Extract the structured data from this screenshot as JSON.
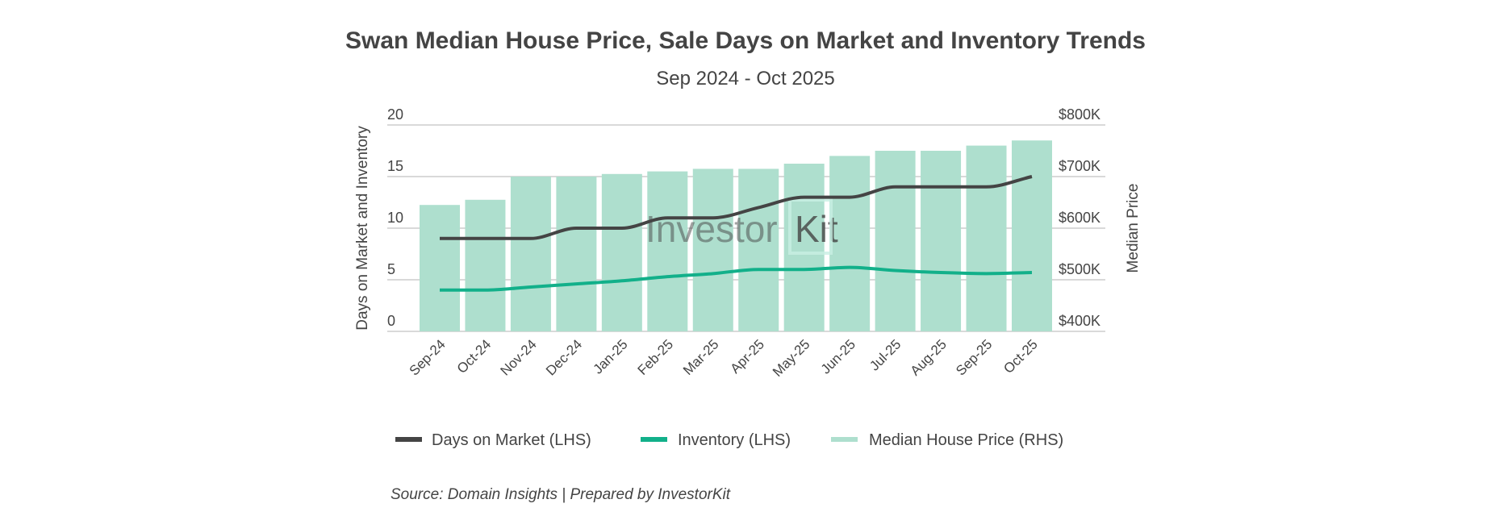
{
  "chart_data": {
    "type": "bar+line",
    "title": "Swan Median House Price, Sale Days on Market and Inventory Trends",
    "subtitle": "Sep 2024 - Oct 2025",
    "categories": [
      "Sep-24",
      "Oct-24",
      "Nov-24",
      "Dec-24",
      "Jan-25",
      "Feb-25",
      "Mar-25",
      "Apr-25",
      "May-25",
      "Jun-25",
      "Jul-25",
      "Aug-25",
      "Sep-25",
      "Oct-25"
    ],
    "ylabel_left": "Days on Market and Inventory",
    "ylabel_right": "Median Price",
    "ylim_left": [
      0,
      20
    ],
    "yticks_left": [
      "0",
      "5",
      "10",
      "15",
      "20"
    ],
    "ylim_right": [
      400000,
      800000
    ],
    "yticks_right": [
      "$400K",
      "$500K",
      "$600K",
      "$700K",
      "$800K"
    ],
    "grid": true,
    "legend_position": "bottom",
    "series": [
      {
        "name": "Days on Market (LHS)",
        "type": "line",
        "axis": "left",
        "color": "#444444",
        "values": [
          9,
          9,
          9,
          10,
          10,
          11,
          11,
          12,
          13,
          13,
          14,
          14,
          14,
          15
        ]
      },
      {
        "name": "Inventory (LHS)",
        "type": "line",
        "axis": "left",
        "color": "#12b08a",
        "values": [
          4.0,
          4.0,
          4.3,
          4.6,
          4.9,
          5.3,
          5.6,
          6.0,
          6.0,
          6.2,
          5.9,
          5.7,
          5.6,
          5.7
        ]
      },
      {
        "name": "Median House Price (RHS)",
        "type": "bar",
        "axis": "right",
        "color": "#aedfce",
        "values": [
          645000,
          655000,
          700000,
          700000,
          705000,
          710000,
          715000,
          715000,
          725000,
          740000,
          750000,
          750000,
          760000,
          770000
        ]
      }
    ]
  },
  "watermark": "InvestorKit",
  "source": "Source: Domain Insights | Prepared by InvestorKit"
}
